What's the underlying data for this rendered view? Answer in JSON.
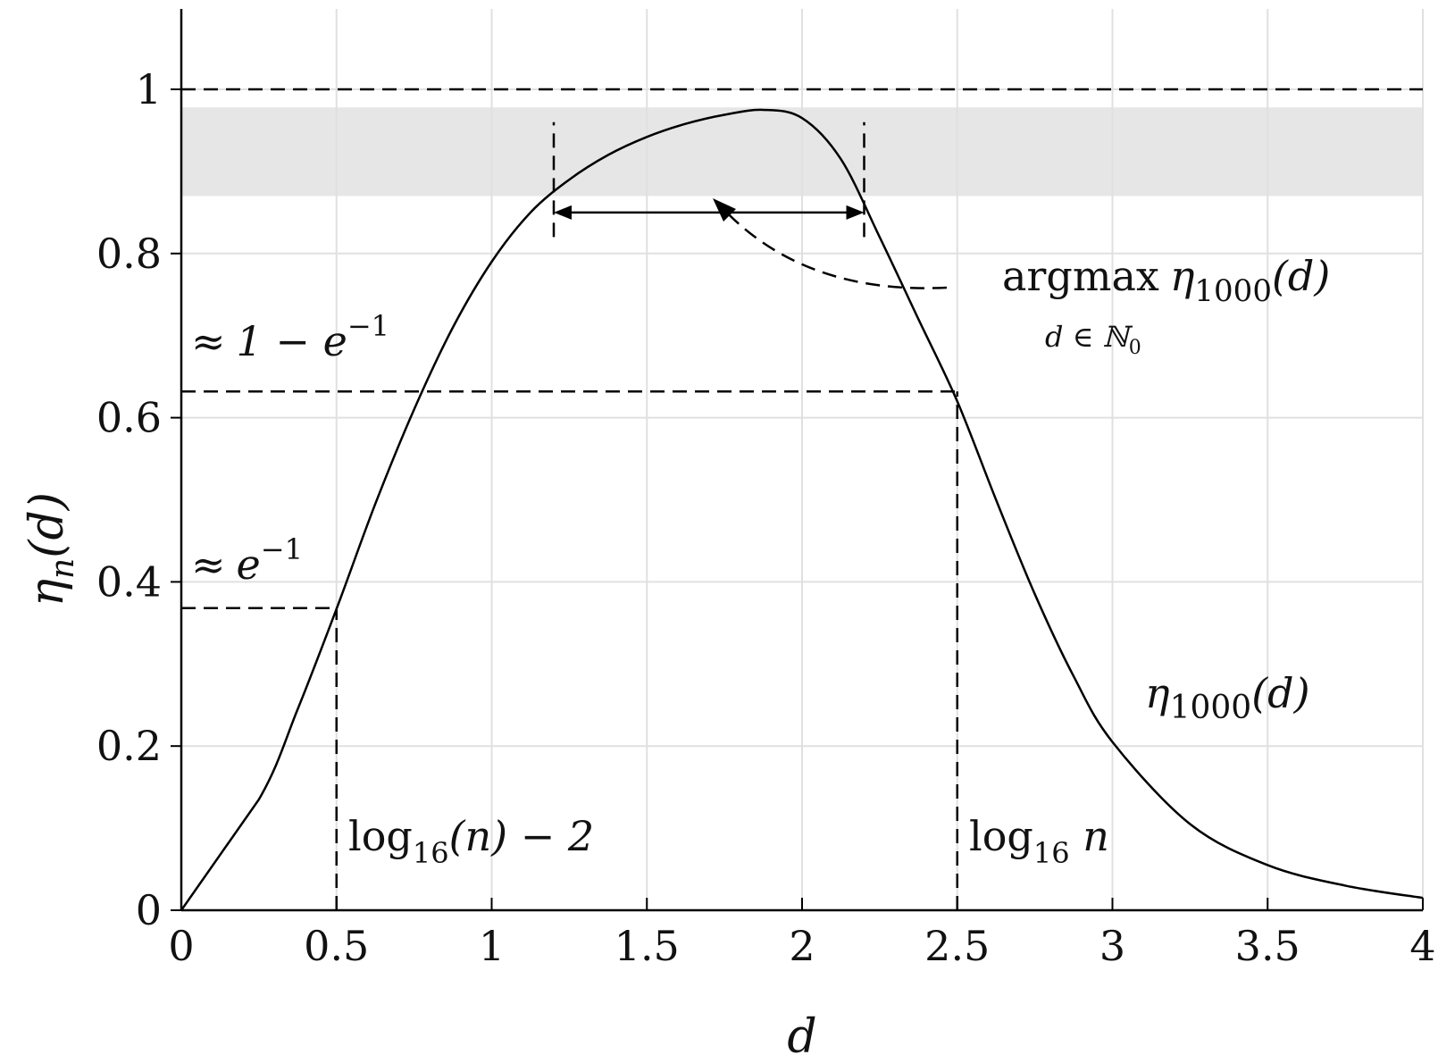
{
  "chart_data": {
    "type": "line",
    "title": "",
    "xlabel": "d",
    "ylabel": {
      "base": "η",
      "sub": "n",
      "tail": "(d)"
    },
    "xlim": [
      0,
      4
    ],
    "ylim": [
      0,
      1.1
    ],
    "x_ticks": [
      0,
      0.5,
      1,
      1.5,
      2,
      2.5,
      3,
      3.5,
      4
    ],
    "x_tick_labels": [
      "0",
      "0.5",
      "1",
      "1.5",
      "2",
      "2.5",
      "3",
      "3.5",
      "4"
    ],
    "y_ticks": [
      0,
      0.2,
      0.4,
      0.6,
      0.8,
      1
    ],
    "y_tick_labels": [
      "0",
      "0.2",
      "0.4",
      "0.6",
      "0.8",
      "1"
    ],
    "grid": true,
    "colors": {
      "curve": "#000000",
      "band": "#e6e6e6",
      "grid": "#e0e0e0"
    },
    "series": [
      {
        "name": "η1000(d)",
        "x": [
          0,
          0.25,
          0.375,
          0.5,
          0.625,
          0.75,
          0.875,
          1,
          1.125,
          1.25,
          1.375,
          1.5,
          1.625,
          1.75,
          1.875,
          2,
          2.125,
          2.25,
          2.375,
          2.5,
          2.625,
          2.75,
          2.875,
          3,
          3.25,
          3.5,
          3.75,
          4
        ],
        "y": [
          0,
          0.135,
          0.245,
          0.367,
          0.495,
          0.61,
          0.71,
          0.79,
          0.85,
          0.89,
          0.92,
          0.942,
          0.958,
          0.969,
          0.975,
          0.965,
          0.915,
          0.82,
          0.72,
          0.62,
          0.5,
          0.385,
          0.285,
          0.205,
          0.105,
          0.055,
          0.03,
          0.015
        ]
      }
    ],
    "band": {
      "y_from": 0.87,
      "y_to": 0.978
    },
    "reference_lines": [
      {
        "type": "horizontal",
        "y": 1,
        "x_from": 0,
        "x_to": 4
      },
      {
        "type": "horizontal",
        "y": 0.632,
        "x_from": 0,
        "x_to": 2.5
      },
      {
        "type": "horizontal",
        "y": 0.368,
        "x_from": 0,
        "x_to": 0.5
      },
      {
        "type": "vertical",
        "x": 0.5,
        "y_from": 0,
        "y_to": 0.368
      },
      {
        "type": "vertical",
        "x": 2.5,
        "y_from": 0,
        "y_to": 0.632
      },
      {
        "type": "vertical",
        "x": 1.2,
        "y_from": 0.82,
        "y_to": 0.96
      },
      {
        "type": "vertical",
        "x": 2.2,
        "y_from": 0.82,
        "y_to": 0.96
      }
    ],
    "range_arrow": {
      "x_from": 1.2,
      "x_to": 2.2,
      "y": 0.85
    },
    "annotations": {
      "one_minus_inv_e": {
        "approx": "≈",
        "text": "1 − e",
        "sup": "−1"
      },
      "inv_e": {
        "approx": "≈",
        "text": "e",
        "sup": "−1"
      },
      "log_minus_two": {
        "pre": "log",
        "sub": "16",
        "post": "(n) − 2"
      },
      "log_n": {
        "pre": "log",
        "sub": "16",
        "post": " n"
      },
      "argmax": {
        "op": "argmax",
        "fn": "η",
        "sub": "1000",
        "tail": "(d)",
        "under": "d ∈ ℕ",
        "under_sub": "0"
      },
      "curve_label": {
        "fn": "η",
        "sub": "1000",
        "tail": "(d)"
      }
    }
  }
}
